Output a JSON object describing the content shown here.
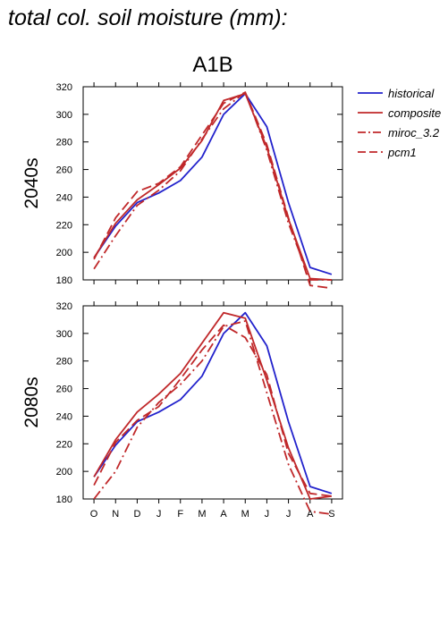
{
  "title": "total col. soil moisture (mm):",
  "chart_data": {
    "type": "line",
    "scenario": "A1B",
    "categories": [
      "O",
      "N",
      "D",
      "J",
      "F",
      "M",
      "A",
      "M",
      "J",
      "J",
      "A",
      "S"
    ],
    "ylim": [
      180,
      320
    ],
    "yticks": [
      180,
      200,
      220,
      240,
      260,
      280,
      300,
      320
    ],
    "legend": {
      "placement": "top-right",
      "entries": [
        {
          "name": "historical",
          "color": "#2222cc",
          "dash": "solid"
        },
        {
          "name": "composite",
          "color": "#c0282a",
          "dash": "solid"
        },
        {
          "name": "miroc_3.2",
          "color": "#c0282a",
          "dash": "dashdot"
        },
        {
          "name": "pcm1",
          "color": "#c0282a",
          "dash": "dashed"
        }
      ]
    },
    "panels": [
      {
        "label": "2040s",
        "series": [
          {
            "name": "historical",
            "values": [
              196,
              219,
              236,
              243,
              252,
              269,
              300,
              315,
              291,
              236,
              189,
              184
            ]
          },
          {
            "name": "composite",
            "values": [
              196,
              221,
              238,
              249,
              261,
              281,
              310,
              315,
              276,
              224,
              181,
              180
            ]
          },
          {
            "name": "miroc_3.2",
            "values": [
              188,
              212,
              234,
              245,
              259,
              282,
              304,
              316,
              274,
              221,
              180,
              180
            ]
          },
          {
            "name": "pcm1",
            "values": [
              195,
              225,
              244,
              250,
              262,
              285,
              308,
              316,
              278,
              225,
              176,
              174
            ]
          }
        ]
      },
      {
        "label": "2080s",
        "series": [
          {
            "name": "historical",
            "values": [
              196,
              219,
              236,
              243,
              252,
              269,
              300,
              315,
              291,
              236,
              189,
              184
            ]
          },
          {
            "name": "composite",
            "values": [
              196,
              223,
              243,
              256,
              271,
              293,
              315,
              311,
              266,
              217,
              180,
              182
            ]
          },
          {
            "name": "miroc_3.2",
            "values": [
              180,
              200,
              232,
              250,
              263,
              280,
              305,
              309,
              257,
              205,
              171,
              169
            ]
          },
          {
            "name": "pcm1",
            "values": [
              190,
              221,
              237,
              247,
              267,
              288,
              306,
              297,
              270,
              213,
              184,
              182
            ]
          }
        ]
      }
    ]
  }
}
